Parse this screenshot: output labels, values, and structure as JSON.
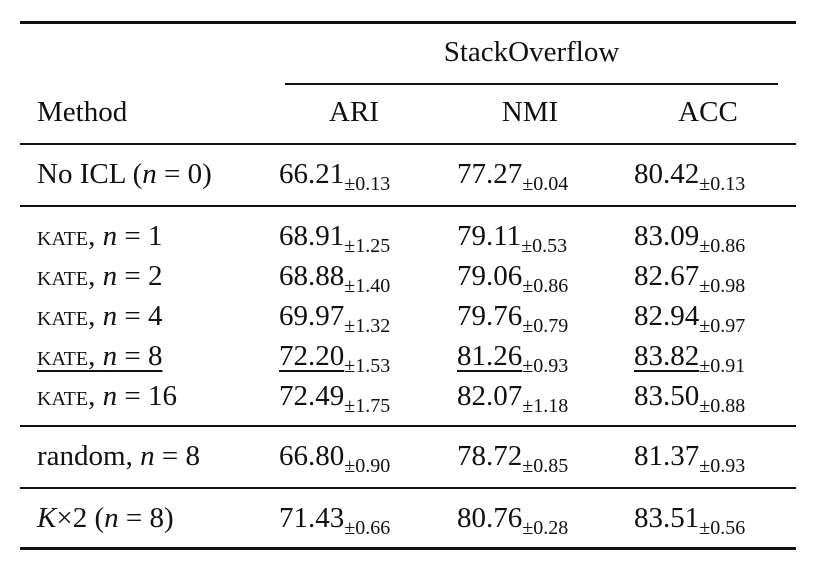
{
  "header": {
    "method_label": "Method",
    "group_label": "StackOverflow",
    "columns": [
      "ARI",
      "NMI",
      "ACC"
    ]
  },
  "rows": [
    {
      "method_pre": "No ICL (",
      "n_var": "n",
      "n_eq": " = 0",
      "method_post": ")",
      "cells": [
        {
          "val": "66.21",
          "err": "±0.13"
        },
        {
          "val": "77.27",
          "err": "±0.04"
        },
        {
          "val": "80.42",
          "err": "±0.13"
        }
      ]
    },
    {
      "method_sc": "kate",
      "sep": ", ",
      "n_var": "n",
      "n_eq": " = 1",
      "cells": [
        {
          "val": "68.91",
          "err": "±1.25"
        },
        {
          "val": "79.11",
          "err": "±0.53"
        },
        {
          "val": "83.09",
          "err": "±0.86"
        }
      ]
    },
    {
      "method_sc": "kate",
      "sep": ", ",
      "n_var": "n",
      "n_eq": " = 2",
      "cells": [
        {
          "val": "68.88",
          "err": "±1.40"
        },
        {
          "val": "79.06",
          "err": "±0.86"
        },
        {
          "val": "82.67",
          "err": "±0.98"
        }
      ]
    },
    {
      "method_sc": "kate",
      "sep": ", ",
      "n_var": "n",
      "n_eq": " = 4",
      "cells": [
        {
          "val": "69.97",
          "err": "±1.32"
        },
        {
          "val": "79.76",
          "err": "±0.79"
        },
        {
          "val": "82.94",
          "err": "±0.97"
        }
      ]
    },
    {
      "method_sc": "kate",
      "sep": ", ",
      "n_var": "n",
      "n_eq": " = 8",
      "cells": [
        {
          "val": "72.20",
          "err": "±1.53"
        },
        {
          "val": "81.26",
          "err": "±0.93"
        },
        {
          "val": "83.82",
          "err": "±0.91"
        }
      ]
    },
    {
      "method_sc": "kate",
      "sep": ", ",
      "n_var": "n",
      "n_eq": " = 16",
      "cells": [
        {
          "val": "72.49",
          "err": "±1.75"
        },
        {
          "val": "82.07",
          "err": "±1.18"
        },
        {
          "val": "83.50",
          "err": "±0.88"
        }
      ]
    },
    {
      "method_pre": "random, ",
      "n_var": "n",
      "n_eq": " = 8",
      "cells": [
        {
          "val": "66.80",
          "err": "±0.90"
        },
        {
          "val": "78.72",
          "err": "±0.85"
        },
        {
          "val": "81.37",
          "err": "±0.93"
        }
      ]
    },
    {
      "k_var": "K",
      "times": "×2 (",
      "n_var": "n",
      "n_eq": " = 8)",
      "cells": [
        {
          "val": "71.43",
          "err": "±0.66"
        },
        {
          "val": "80.76",
          "err": "±0.28"
        },
        {
          "val": "83.51",
          "err": "±0.56"
        }
      ]
    }
  ]
}
